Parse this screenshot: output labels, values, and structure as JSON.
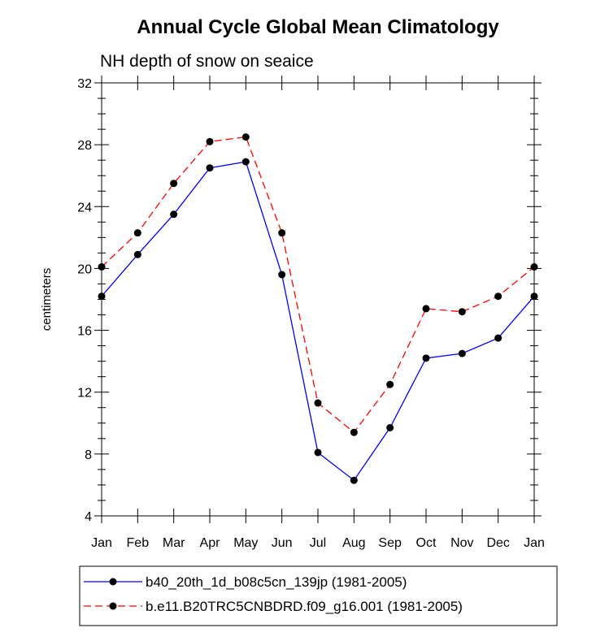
{
  "chart_data": {
    "type": "line",
    "title": "Annual Cycle Global Mean Climatology",
    "subtitle": "NH depth of snow on seaice",
    "xlabel": "",
    "ylabel": "centimeters",
    "categories": [
      "Jan",
      "Feb",
      "Mar",
      "Apr",
      "May",
      "Jun",
      "Jul",
      "Aug",
      "Sep",
      "Oct",
      "Nov",
      "Dec",
      "Jan"
    ],
    "ylim": [
      4,
      32
    ],
    "yticks": [
      "4",
      "8",
      "12",
      "16",
      "20",
      "24",
      "28",
      "32"
    ],
    "series": [
      {
        "name": "b40_20th_1d_b08c5cn_139jp (1981-2005)",
        "color": "#0000ff",
        "dash": "solid",
        "values": [
          18.2,
          20.9,
          23.5,
          26.5,
          26.9,
          19.6,
          8.1,
          6.3,
          9.7,
          14.2,
          14.5,
          15.5,
          18.2
        ]
      },
      {
        "name": "b.e11.B20TRC5CNBDRD.f09_g16.001 (1981-2005)",
        "color": "#ff0000",
        "dash": "dashed",
        "values": [
          20.1,
          22.3,
          25.5,
          28.2,
          28.5,
          22.3,
          11.3,
          9.4,
          12.5,
          17.4,
          17.2,
          18.2,
          20.1
        ]
      }
    ],
    "grid": false,
    "legend_position": "bottom"
  }
}
